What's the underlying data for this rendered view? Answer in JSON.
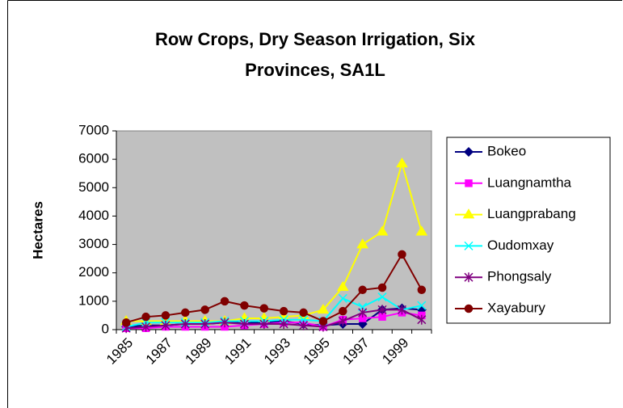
{
  "chart_data": {
    "type": "line",
    "title": [
      "Row Crops, Dry Season Irrigation, Six",
      "Provinces, SA1L"
    ],
    "y_label": "Hectares",
    "categories": [
      "1985",
      null,
      "1987",
      null,
      "1989",
      null,
      "1991",
      null,
      "1993",
      null,
      "1995",
      null,
      "1997",
      null,
      "1999",
      null
    ],
    "series": [
      {
        "name": "Bokeo",
        "color": "#000080",
        "marker": "diamond",
        "values": [
          100,
          150,
          150,
          200,
          200,
          250,
          250,
          250,
          300,
          200,
          150,
          200,
          200,
          700,
          750,
          700
        ]
      },
      {
        "name": "Luangnamtha",
        "color": "#ff00ff",
        "marker": "square",
        "values": [
          50,
          50,
          100,
          100,
          100,
          100,
          150,
          200,
          250,
          250,
          100,
          350,
          400,
          450,
          600,
          500
        ]
      },
      {
        "name": "Luangprabang",
        "color": "#ffff00",
        "marker": "triangle",
        "values": [
          300,
          300,
          300,
          300,
          300,
          300,
          400,
          400,
          450,
          500,
          700,
          1500,
          3000,
          3450,
          5850,
          3450
        ]
      },
      {
        "name": "Oudomxay",
        "color": "#00ffff",
        "marker": "x",
        "values": [
          100,
          250,
          250,
          250,
          250,
          300,
          300,
          300,
          350,
          350,
          300,
          1100,
          800,
          1150,
          700,
          850
        ]
      },
      {
        "name": "Phongsaly",
        "color": "#800080",
        "marker": "star",
        "values": [
          50,
          100,
          150,
          200,
          200,
          250,
          200,
          200,
          200,
          150,
          100,
          300,
          600,
          700,
          700,
          350
        ]
      },
      {
        "name": "Xayabury",
        "color": "#800000",
        "marker": "circle",
        "values": [
          250,
          450,
          500,
          600,
          700,
          1000,
          850,
          750,
          650,
          600,
          300,
          650,
          1400,
          1480,
          2650,
          1400
        ]
      }
    ],
    "ylim": [
      0,
      7000
    ],
    "yticks": [
      0,
      1000,
      2000,
      3000,
      4000,
      5000,
      6000,
      7000
    ],
    "plot_background": "#c0c0c0",
    "grid": false,
    "legend": "right"
  }
}
